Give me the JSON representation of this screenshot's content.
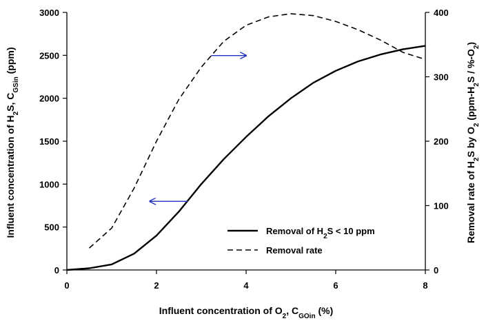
{
  "chart_data": {
    "type": "line",
    "x_axis": {
      "label_parts": [
        {
          "text": "Influent concentration of O"
        },
        {
          "text": "2",
          "sub": true
        },
        {
          "text": ", C"
        },
        {
          "text": "GOin",
          "sub": true
        },
        {
          "text": " (%)"
        }
      ],
      "range": [
        0,
        8
      ],
      "ticks": [
        0,
        2,
        4,
        6,
        8
      ]
    },
    "y_left": {
      "label_parts": [
        {
          "text": "Influent concentration of  H"
        },
        {
          "text": "2",
          "sub": true
        },
        {
          "text": "S, C"
        },
        {
          "text": "GSin",
          "sub": true
        },
        {
          "text": " (ppm)"
        }
      ],
      "range": [
        0,
        3000
      ],
      "ticks": [
        0,
        500,
        1000,
        1500,
        2000,
        2500,
        3000
      ]
    },
    "y_right": {
      "label_parts": [
        {
          "text": "Removal rate of H"
        },
        {
          "text": "2",
          "sub": true
        },
        {
          "text": "S by O"
        },
        {
          "text": "2",
          "sub": true
        },
        {
          "text": " (ppm-H"
        },
        {
          "text": "2",
          "sub": true
        },
        {
          "text": "S / %-O"
        },
        {
          "text": "2",
          "sub": true
        },
        {
          "text": ")"
        }
      ],
      "range": [
        0,
        400
      ],
      "ticks": [
        0,
        100,
        200,
        300,
        400
      ]
    },
    "series": [
      {
        "name": "Removal of H2S < 10 ppm",
        "legend_parts": [
          {
            "text": "Removal of H"
          },
          {
            "text": "2",
            "sub": true
          },
          {
            "text": "S < 10 ppm"
          }
        ],
        "axis": "left",
        "style": "solid",
        "color": "#000000",
        "x": [
          0,
          0.5,
          1.0,
          1.5,
          2.0,
          2.5,
          3.0,
          3.5,
          4.0,
          4.5,
          5.0,
          5.5,
          6.0,
          6.5,
          7.0,
          7.5,
          8.0
        ],
        "y": [
          0,
          20,
          65,
          190,
          400,
          680,
          1000,
          1290,
          1550,
          1790,
          2000,
          2180,
          2320,
          2430,
          2510,
          2570,
          2610
        ]
      },
      {
        "name": "Removal rate",
        "legend_parts": [
          {
            "text": "Removal rate"
          }
        ],
        "axis": "right",
        "style": "dashed",
        "color": "#000000",
        "x": [
          0.5,
          1.0,
          1.5,
          2.0,
          2.5,
          3.0,
          3.5,
          4.0,
          4.5,
          5.0,
          5.5,
          6.0,
          6.5,
          7.0,
          7.5,
          8.0
        ],
        "y": [
          34,
          65,
          127,
          200,
          265,
          315,
          355,
          380,
          393,
          398,
          395,
          386,
          373,
          357,
          338,
          327
        ]
      }
    ],
    "annotations": [
      {
        "type": "arrow",
        "color": "#1f2fbf",
        "direction": "right",
        "points_to_axis": "right",
        "from": [
          3.22,
          333
        ],
        "to": [
          4.0,
          333
        ]
      },
      {
        "type": "arrow",
        "color": "#1f2fbf",
        "direction": "left",
        "points_to_axis": "left",
        "from": [
          2.7,
          800
        ],
        "to": [
          1.85,
          800
        ]
      }
    ],
    "legend": {
      "placement": "lower-right"
    },
    "grid": false
  }
}
